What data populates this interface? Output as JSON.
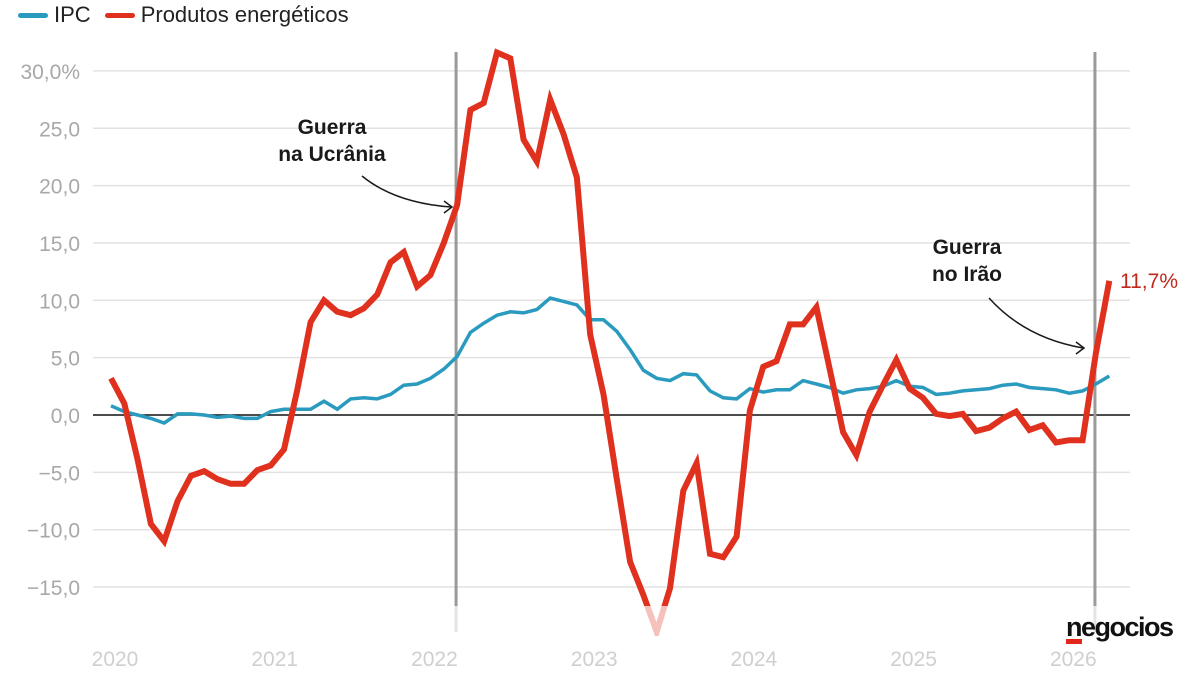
{
  "legend": [
    {
      "label": "IPC",
      "color": "#2a9bbf"
    },
    {
      "label": "Produtos energéticos",
      "color": "#e0301e"
    }
  ],
  "annotations": {
    "ukraine": {
      "line1": "Guerra",
      "line2": "na Ucrânia",
      "date": "2022-03"
    },
    "iran": {
      "line1": "Guerra",
      "line2": "no Irão",
      "date": "2026-03"
    },
    "last_value_label": "11,7%"
  },
  "logo": "negocios",
  "chart_data": {
    "type": "line",
    "title": "",
    "xlabel": "",
    "ylabel": "",
    "x_start": "2020-01",
    "x_frequency": "monthly",
    "x_tick_labels": [
      "2020",
      "2021",
      "2022",
      "2023",
      "2024",
      "2025",
      "2026"
    ],
    "y_tick_values": [
      30,
      25,
      20,
      15,
      10,
      5,
      0,
      -5,
      -10,
      -15
    ],
    "y_tick_labels": [
      "30,0%",
      "25,0",
      "20,0",
      "15,0",
      "10,0",
      "5,0",
      "0,0",
      "−5,0",
      "−10,0",
      "−15,0"
    ],
    "ylim": [
      -19,
      31.7
    ],
    "grid": true,
    "legend_position": "top-left",
    "series": [
      {
        "name": "IPC",
        "color": "#2a9bbf",
        "values": [
          0.8,
          0.3,
          0.0,
          -0.3,
          -0.7,
          0.1,
          0.1,
          0.0,
          -0.2,
          -0.1,
          -0.3,
          -0.3,
          0.3,
          0.5,
          0.5,
          0.5,
          1.2,
          0.5,
          1.4,
          1.5,
          1.4,
          1.8,
          2.6,
          2.7,
          3.2,
          4.0,
          5.1,
          7.2,
          8.0,
          8.7,
          9.0,
          8.9,
          9.2,
          10.2,
          9.9,
          9.6,
          8.3,
          8.3,
          7.3,
          5.7,
          3.9,
          3.2,
          3.0,
          3.6,
          3.5,
          2.1,
          1.5,
          1.4,
          2.3,
          2.0,
          2.2,
          2.2,
          3.0,
          2.7,
          2.4,
          1.9,
          2.2,
          2.3,
          2.5,
          3.0,
          2.5,
          2.4,
          1.8,
          1.9,
          2.1,
          2.2,
          2.3,
          2.6,
          2.7,
          2.4,
          2.3,
          2.2,
          1.9,
          2.1,
          2.7,
          3.4
        ]
      },
      {
        "name": "Produtos energéticos",
        "color": "#e0301e",
        "values": [
          3.2,
          1.0,
          -3.9,
          -9.5,
          -11.0,
          -7.5,
          -5.3,
          -4.9,
          -5.6,
          -6.0,
          -6.0,
          -4.8,
          -4.4,
          -3.0,
          2.2,
          8.1,
          10.0,
          9.0,
          8.7,
          9.3,
          10.5,
          13.3,
          14.2,
          11.2,
          12.2,
          15.0,
          18.3,
          26.6,
          27.2,
          31.6,
          31.1,
          24.0,
          22.1,
          27.5,
          24.5,
          20.7,
          7.0,
          1.8,
          -5.6,
          -12.8,
          -15.7,
          -18.9,
          -15.1,
          -6.6,
          -4.2,
          -12.1,
          -12.4,
          -10.6,
          0.4,
          4.2,
          4.7,
          7.9,
          7.9,
          9.4,
          4.0,
          -1.5,
          -3.5,
          0.3,
          2.6,
          4.8,
          2.3,
          1.5,
          0.1,
          -0.1,
          0.1,
          -1.4,
          -1.1,
          -0.3,
          0.3,
          -1.3,
          -0.9,
          -2.4,
          -2.2,
          -2.2,
          5.4,
          11.7
        ]
      }
    ]
  }
}
